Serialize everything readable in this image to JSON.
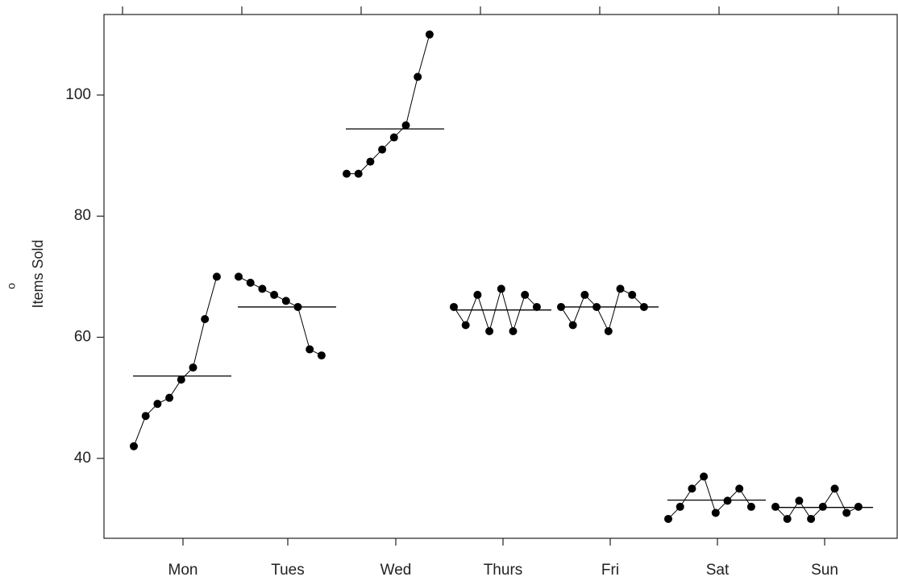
{
  "chart_data": {
    "type": "subseries",
    "y_label": "Items Sold",
    "y_label_marker": "o",
    "categories": [
      "Mon",
      "Tues",
      "Wed",
      "Thurs",
      "Fri",
      "Sat",
      "Sun"
    ],
    "values": [
      [
        42,
        47,
        49,
        50,
        53,
        55,
        63,
        70
      ],
      [
        70,
        69,
        68,
        67,
        66,
        65,
        58,
        57
      ],
      [
        87,
        87,
        89,
        91,
        93,
        95,
        103,
        110
      ],
      [
        65,
        62,
        67,
        61,
        68,
        61,
        67,
        65
      ],
      [
        65,
        62,
        67,
        65,
        61,
        68,
        67,
        65
      ],
      [
        30,
        32,
        35,
        37,
        31,
        33,
        35,
        32
      ],
      [
        32,
        30,
        33,
        30,
        32,
        35,
        31,
        32
      ]
    ],
    "means": [
      53.6,
      65,
      94.4,
      64.5,
      65,
      33.1,
      31.9
    ],
    "color": "#000000",
    "ylim": [
      26.8,
      113.3
    ],
    "yticks": [
      40,
      60,
      80,
      100
    ]
  }
}
